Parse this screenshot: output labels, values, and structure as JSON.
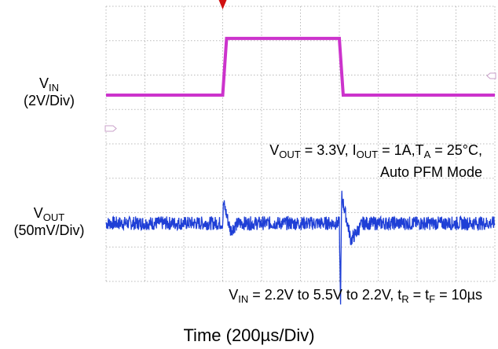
{
  "chart_data": {
    "type": "line",
    "title": "",
    "xlabel": "Time (200µs/Div)",
    "x_unit": "µs",
    "grid": true,
    "divisions": {
      "x": 10,
      "y": 8
    },
    "series": [
      {
        "name": "VIN",
        "channel_label": {
          "main": "V",
          "sub": "IN",
          "scale": "(2V/Div)"
        },
        "color": "#cc33cc",
        "unit": "V",
        "x": [
          0,
          300,
          310,
          600,
          610,
          1000
        ],
        "values": [
          2.2,
          2.2,
          5.5,
          5.5,
          2.2,
          2.2
        ]
      },
      {
        "name": "VOUT",
        "channel_label": {
          "main": "V",
          "sub": "OUT",
          "scale": "(50mV/Div)"
        },
        "color": "#1f3fd6",
        "unit": "mV (AC-coupled)",
        "x": [
          0,
          300,
          302,
          320,
          340,
          600,
          603,
          606,
          630,
          660,
          1000
        ],
        "values": [
          0,
          0,
          30,
          -10,
          0,
          0,
          -120,
          40,
          -25,
          0,
          0
        ],
        "ripple_mV": 10
      }
    ],
    "annotations": [
      {
        "id": "conditions_1",
        "parts": [
          [
            "V",
            ""
          ],
          [
            "OUT",
            "sub"
          ],
          [
            " = 3.3V, I",
            ""
          ],
          [
            "OUT",
            "sub"
          ],
          [
            " = 1A,T",
            ""
          ],
          [
            "A",
            "sub"
          ],
          [
            " = 25°C,",
            ""
          ]
        ]
      },
      {
        "id": "conditions_2",
        "parts": [
          [
            "Auto PFM Mode",
            ""
          ]
        ]
      },
      {
        "id": "conditions_3",
        "parts": [
          [
            "V",
            ""
          ],
          [
            "IN",
            "sub"
          ],
          [
            " = 2.2V to 5.5V to 2.2V, t",
            ""
          ],
          [
            "R",
            "sub"
          ],
          [
            " = t",
            ""
          ],
          [
            "F",
            "sub"
          ],
          [
            " = 10µs",
            ""
          ]
        ]
      }
    ],
    "trigger_marker_color": "#d01010"
  }
}
